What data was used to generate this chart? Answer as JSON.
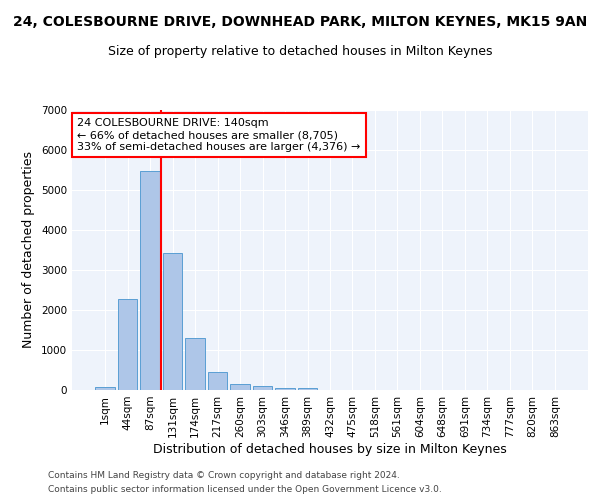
{
  "title_line1": "24, COLESBOURNE DRIVE, DOWNHEAD PARK, MILTON KEYNES, MK15 9AN",
  "title_line2": "Size of property relative to detached houses in Milton Keynes",
  "xlabel": "Distribution of detached houses by size in Milton Keynes",
  "ylabel": "Number of detached properties",
  "categories": [
    "1sqm",
    "44sqm",
    "87sqm",
    "131sqm",
    "174sqm",
    "217sqm",
    "260sqm",
    "303sqm",
    "346sqm",
    "389sqm",
    "432sqm",
    "475sqm",
    "518sqm",
    "561sqm",
    "604sqm",
    "648sqm",
    "691sqm",
    "734sqm",
    "777sqm",
    "820sqm",
    "863sqm"
  ],
  "values": [
    75,
    2280,
    5480,
    3430,
    1310,
    460,
    155,
    90,
    55,
    40,
    0,
    0,
    0,
    0,
    0,
    0,
    0,
    0,
    0,
    0,
    0
  ],
  "bar_color": "#aec6e8",
  "bar_edgecolor": "#5a9fd4",
  "vline_color": "red",
  "vline_index": 2.5,
  "annotation_title": "24 COLESBOURNE DRIVE: 140sqm",
  "annotation_line1": "← 66% of detached houses are smaller (8,705)",
  "annotation_line2": "33% of semi-detached houses are larger (4,376) →",
  "annotation_box_color": "white",
  "annotation_box_edgecolor": "red",
  "ylim": [
    0,
    7000
  ],
  "yticks": [
    0,
    1000,
    2000,
    3000,
    4000,
    5000,
    6000,
    7000
  ],
  "footnote1": "Contains HM Land Registry data © Crown copyright and database right 2024.",
  "footnote2": "Contains public sector information licensed under the Open Government Licence v3.0.",
  "bg_color": "#eef3fb",
  "grid_color": "#ffffff",
  "title1_fontsize": 10,
  "title2_fontsize": 9,
  "axis_label_fontsize": 9,
  "tick_fontsize": 7.5,
  "bar_width": 0.85
}
